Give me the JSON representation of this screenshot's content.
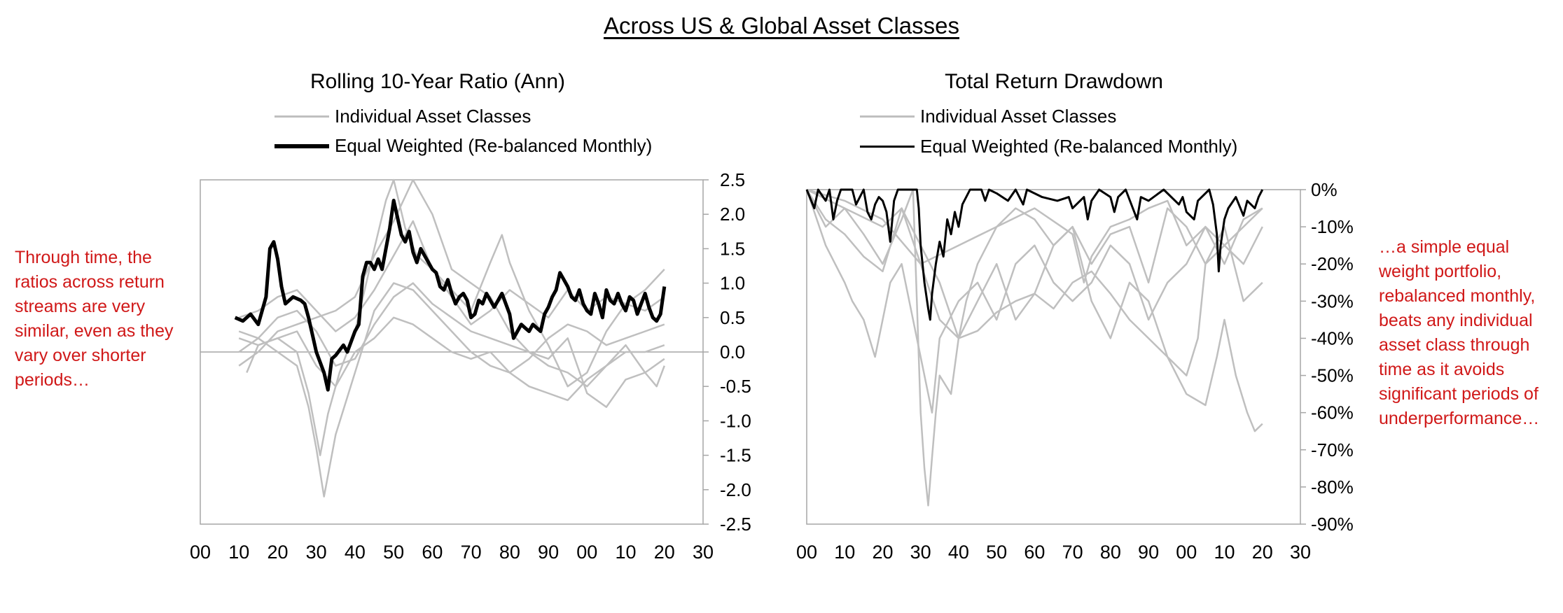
{
  "main_title": "Across US & Global Asset Classes",
  "left_note": "Through time, the ratios across return streams are very similar, even as they vary over shorter periods…",
  "right_note": "…a simple equal weight portfolio, rebalanced monthly, beats any individual asset class through time as it avoids significant periods of underperformance…",
  "colors": {
    "individual": "#bfbfbf",
    "equal_weighted": "#000000",
    "annotation": "#d01818"
  },
  "chart_data": [
    {
      "type": "line",
      "title": "Rolling 10-Year Ratio (Ann)",
      "legend_position": "top",
      "legend": [
        "Individual Asset Classes",
        "Equal Weighted (Re-balanced Monthly)"
      ],
      "x_tick_labels": [
        "00",
        "10",
        "20",
        "30",
        "40",
        "50",
        "60",
        "70",
        "80",
        "90",
        "00",
        "10",
        "20",
        "30"
      ],
      "xlim": [
        1900,
        2030
      ],
      "y_tick_labels": [
        "2.5",
        "2.0",
        "1.5",
        "1.0",
        "0.5",
        "0.0",
        "-0.5",
        "-1.0",
        "-1.5",
        "-2.0",
        "-2.5"
      ],
      "ylim": [
        -2.5,
        2.5
      ],
      "y_axis_side": "right",
      "grid": false,
      "series": [
        {
          "name": "Equal Weighted (Re-balanced Monthly)",
          "x": [
            1909,
            1911,
            1913,
            1915,
            1917,
            1918,
            1919,
            1920,
            1921,
            1922,
            1924,
            1926,
            1927,
            1928,
            1929,
            1930,
            1931,
            1932,
            1933,
            1934,
            1935,
            1937,
            1938,
            1940,
            1941,
            1942,
            1943,
            1944,
            1945,
            1946,
            1947,
            1948,
            1949,
            1950,
            1951,
            1952,
            1953,
            1954,
            1955,
            1956,
            1957,
            1958,
            1959,
            1960,
            1961,
            1962,
            1963,
            1964,
            1965,
            1966,
            1967,
            1968,
            1969,
            1970,
            1971,
            1972,
            1973,
            1974,
            1975,
            1976,
            1977,
            1978,
            1979,
            1980,
            1981,
            1982,
            1983,
            1984,
            1985,
            1986,
            1987,
            1988,
            1989,
            1990,
            1991,
            1992,
            1993,
            1994,
            1995,
            1996,
            1997,
            1998,
            1999,
            2000,
            2001,
            2002,
            2003,
            2004,
            2005,
            2006,
            2007,
            2008,
            2009,
            2010,
            2011,
            2012,
            2013,
            2014,
            2015,
            2016,
            2017,
            2018,
            2019,
            2020
          ],
          "y": [
            0.5,
            0.45,
            0.55,
            0.4,
            0.8,
            1.5,
            1.6,
            1.35,
            0.95,
            0.7,
            0.8,
            0.75,
            0.7,
            0.5,
            0.25,
            0.0,
            -0.15,
            -0.3,
            -0.55,
            -0.1,
            -0.05,
            0.1,
            0.0,
            0.3,
            0.4,
            1.1,
            1.3,
            1.3,
            1.2,
            1.35,
            1.2,
            1.5,
            1.8,
            2.2,
            1.95,
            1.7,
            1.6,
            1.75,
            1.45,
            1.3,
            1.5,
            1.4,
            1.3,
            1.2,
            1.15,
            0.95,
            0.9,
            1.05,
            0.85,
            0.7,
            0.8,
            0.85,
            0.75,
            0.5,
            0.55,
            0.75,
            0.7,
            0.85,
            0.75,
            0.65,
            0.75,
            0.85,
            0.7,
            0.55,
            0.2,
            0.3,
            0.4,
            0.35,
            0.3,
            0.4,
            0.35,
            0.3,
            0.55,
            0.65,
            0.8,
            0.9,
            1.15,
            1.05,
            0.95,
            0.8,
            0.75,
            0.9,
            0.7,
            0.6,
            0.55,
            0.85,
            0.7,
            0.5,
            0.9,
            0.75,
            0.7,
            0.85,
            0.7,
            0.6,
            0.8,
            0.75,
            0.55,
            0.7,
            0.85,
            0.65,
            0.5,
            0.45,
            0.55,
            0.95
          ]
        },
        {
          "name": "",
          "x": [
            1910,
            1915,
            1920,
            1925,
            1928,
            1931,
            1933,
            1936,
            1940,
            1945,
            1948,
            1950,
            1953,
            1956,
            1960,
            1965,
            1970,
            1975,
            1980,
            1985,
            1990,
            1995,
            2000,
            2005,
            2010,
            2015,
            2020
          ],
          "y": [
            0.2,
            0.1,
            0.2,
            0.0,
            -0.6,
            -1.5,
            -0.9,
            -0.3,
            0.3,
            1.5,
            2.2,
            2.5,
            1.8,
            1.4,
            1.2,
            0.8,
            0.4,
            0.6,
            0.9,
            0.7,
            0.5,
            0.9,
            0.6,
            0.8,
            0.7,
            0.6,
            0.8
          ]
        },
        {
          "name": "",
          "x": [
            1910,
            1915,
            1920,
            1925,
            1928,
            1930,
            1932,
            1935,
            1940,
            1945,
            1950,
            1955,
            1960,
            1965,
            1970,
            1975,
            1980,
            1985,
            1990,
            1995,
            2000,
            2005,
            2010,
            2015,
            2020
          ],
          "y": [
            0.3,
            0.2,
            0.0,
            -0.2,
            -0.8,
            -1.4,
            -2.1,
            -1.2,
            -0.3,
            0.6,
            1.0,
            0.9,
            0.6,
            0.3,
            0.0,
            -0.2,
            -0.3,
            -0.1,
            0.2,
            0.4,
            0.3,
            0.1,
            0.2,
            0.3,
            0.4
          ]
        },
        {
          "name": "",
          "x": [
            1910,
            1915,
            1920,
            1925,
            1930,
            1935,
            1940,
            1945,
            1950,
            1955,
            1960,
            1965,
            1970,
            1975,
            1980,
            1985,
            1990,
            1995,
            2000,
            2005,
            2010,
            2015,
            2020
          ],
          "y": [
            -0.2,
            0.0,
            0.3,
            0.4,
            0.5,
            0.6,
            0.8,
            1.4,
            1.9,
            2.5,
            2.0,
            1.2,
            1.0,
            0.8,
            0.3,
            0.0,
            -0.2,
            -0.3,
            -0.5,
            -0.2,
            0.0,
            0.0,
            0.1
          ]
        },
        {
          "name": "",
          "x": [
            1912,
            1915,
            1920,
            1925,
            1930,
            1935,
            1940,
            1945,
            1950,
            1955,
            1960,
            1965,
            1970,
            1975,
            1980,
            1985,
            1990,
            1995,
            2000,
            2005,
            2010,
            2015,
            2018,
            2020
          ],
          "y": [
            -0.3,
            0.1,
            0.2,
            0.3,
            -0.2,
            -0.5,
            0.0,
            0.2,
            0.5,
            0.4,
            0.2,
            0.0,
            -0.1,
            0.0,
            -0.3,
            -0.5,
            -0.6,
            -0.7,
            -0.4,
            -0.2,
            0.1,
            -0.3,
            -0.5,
            -0.2
          ]
        },
        {
          "name": "",
          "x": [
            1910,
            1915,
            1920,
            1925,
            1930,
            1935,
            1940,
            1945,
            1950,
            1955,
            1960,
            1965,
            1970,
            1975,
            1978,
            1980,
            1985,
            1990,
            1995,
            2000,
            2005,
            2010,
            2015,
            2020
          ],
          "y": [
            0.5,
            0.6,
            0.8,
            0.9,
            0.6,
            0.3,
            0.5,
            0.9,
            1.4,
            1.9,
            1.2,
            0.9,
            0.6,
            1.3,
            1.7,
            1.3,
            0.6,
            0.1,
            -0.5,
            -0.3,
            0.3,
            0.7,
            0.9,
            1.2
          ]
        },
        {
          "name": "",
          "x": [
            1910,
            1915,
            1920,
            1925,
            1930,
            1935,
            1940,
            1945,
            1950,
            1955,
            1960,
            1965,
            1970,
            1975,
            1980,
            1985,
            1990,
            1995,
            2000,
            2005,
            2010,
            2015,
            2020
          ],
          "y": [
            0.0,
            0.2,
            0.5,
            0.6,
            0.3,
            -0.2,
            -0.1,
            0.4,
            0.8,
            1.0,
            0.7,
            0.5,
            0.3,
            0.2,
            0.1,
            0.0,
            -0.1,
            0.2,
            -0.6,
            -0.8,
            -0.4,
            -0.3,
            -0.1
          ]
        }
      ]
    },
    {
      "type": "line",
      "title": "Total Return Drawdown",
      "legend_position": "top",
      "legend": [
        "Individual Asset Classes",
        "Equal Weighted (Re-balanced Monthly)"
      ],
      "x_tick_labels": [
        "00",
        "10",
        "20",
        "30",
        "40",
        "50",
        "60",
        "70",
        "80",
        "90",
        "00",
        "10",
        "20",
        "30"
      ],
      "xlim": [
        1900,
        2030
      ],
      "y_tick_labels": [
        "0%",
        "-10%",
        "-20%",
        "-30%",
        "-40%",
        "-50%",
        "-60%",
        "-70%",
        "-80%",
        "-90%"
      ],
      "ylim": [
        -90,
        0
      ],
      "y_axis_side": "right",
      "grid": false,
      "series": [
        {
          "name": "Equal Weighted (Re-balanced Monthly)",
          "x": [
            1900,
            1902,
            1903,
            1905,
            1906,
            1907,
            1908,
            1909,
            1912,
            1913,
            1915,
            1916,
            1917,
            1918,
            1919,
            1920,
            1921,
            1922,
            1923,
            1924,
            1926,
            1929,
            1929.5,
            1930,
            1931,
            1932,
            1932.5,
            1933,
            1934,
            1935,
            1936,
            1937,
            1938,
            1939,
            1940,
            1941,
            1942,
            1943,
            1946,
            1947,
            1948,
            1950,
            1953,
            1955,
            1957,
            1958,
            1962,
            1966,
            1969,
            1970,
            1973,
            1974,
            1975,
            1977,
            1980,
            1981,
            1982,
            1984,
            1987,
            1988,
            1990,
            1994,
            1998,
            1999,
            2000,
            2002,
            2003,
            2006,
            2007,
            2008,
            2008.5,
            2009,
            2010,
            2011,
            2013,
            2015,
            2016,
            2018,
            2019,
            2020
          ],
          "y": [
            0,
            -5,
            0,
            -3,
            0,
            -8,
            -3,
            0,
            0,
            -4,
            0,
            -6,
            -8,
            -4,
            -2,
            -3,
            -6,
            -14,
            -3,
            0,
            0,
            0,
            -5,
            -15,
            -25,
            -32,
            -35,
            -28,
            -20,
            -14,
            -18,
            -8,
            -12,
            -6,
            -10,
            -4,
            -2,
            0,
            0,
            -3,
            0,
            -1,
            -3,
            0,
            -4,
            0,
            -2,
            -3,
            -2,
            -5,
            -2,
            -8,
            -3,
            0,
            -2,
            -6,
            -2,
            0,
            -8,
            -2,
            -3,
            0,
            -4,
            -2,
            -6,
            -8,
            -3,
            0,
            -4,
            -12,
            -22,
            -15,
            -8,
            -5,
            -2,
            -7,
            -3,
            -5,
            -2,
            0
          ]
        },
        {
          "name": "",
          "x": [
            1900,
            1905,
            1910,
            1915,
            1920,
            1925,
            1928,
            1929,
            1930,
            1931,
            1932,
            1933,
            1934,
            1935,
            1938,
            1940,
            1942,
            1945,
            1950,
            1955,
            1960,
            1965,
            1970,
            1975,
            1980,
            1985,
            1990,
            1995,
            2000,
            2005,
            2010,
            2015,
            2020
          ],
          "y": [
            0,
            -10,
            -5,
            -12,
            -20,
            -8,
            0,
            -30,
            -60,
            -75,
            -85,
            -72,
            -60,
            -50,
            -55,
            -40,
            -30,
            -20,
            -10,
            -5,
            -8,
            -15,
            -10,
            -20,
            -12,
            -10,
            -25,
            -5,
            -10,
            -20,
            -15,
            -10,
            -5
          ]
        },
        {
          "name": "",
          "x": [
            1900,
            1905,
            1910,
            1912,
            1915,
            1918,
            1920,
            1922,
            1925,
            1930,
            1933,
            1935,
            1940,
            1945,
            1950,
            1955,
            1960,
            1965,
            1970,
            1975,
            1980,
            1985,
            1990,
            1995,
            2000,
            2005,
            2010,
            2015,
            2020
          ],
          "y": [
            0,
            -15,
            -25,
            -30,
            -35,
            -45,
            -35,
            -25,
            -20,
            -45,
            -60,
            -40,
            -30,
            -25,
            -35,
            -20,
            -15,
            -25,
            -30,
            -25,
            -15,
            -20,
            -35,
            -25,
            -20,
            -10,
            -15,
            -20,
            -10
          ]
        },
        {
          "name": "",
          "x": [
            1900,
            1910,
            1920,
            1925,
            1930,
            1935,
            1940,
            1945,
            1950,
            1955,
            1960,
            1965,
            1970,
            1975,
            1980,
            1985,
            1990,
            1995,
            2000,
            2005,
            2008,
            2010,
            2013,
            2016,
            2018,
            2020
          ],
          "y": [
            0,
            -5,
            -10,
            -5,
            -20,
            -35,
            -40,
            -38,
            -33,
            -30,
            -28,
            -32,
            -25,
            -22,
            -28,
            -35,
            -40,
            -45,
            -55,
            -58,
            -45,
            -35,
            -50,
            -60,
            -65,
            -63
          ]
        },
        {
          "name": "",
          "x": [
            1900,
            1905,
            1910,
            1915,
            1920,
            1925,
            1930,
            1935,
            1940,
            1945,
            1950,
            1955,
            1960,
            1965,
            1970,
            1975,
            1980,
            1985,
            1990,
            1995,
            2000,
            2003,
            2005,
            2010,
            2015,
            2020
          ],
          "y": [
            0,
            -8,
            -12,
            -18,
            -22,
            -5,
            -15,
            -25,
            -40,
            -30,
            -20,
            -35,
            -28,
            -15,
            -10,
            -30,
            -40,
            -25,
            -30,
            -45,
            -50,
            -40,
            -20,
            -10,
            -30,
            -25
          ]
        },
        {
          "name": "",
          "x": [
            1900,
            1910,
            1920,
            1930,
            1940,
            1950,
            1960,
            1970,
            1973,
            1975,
            1980,
            1985,
            1990,
            1995,
            2000,
            2005,
            2010,
            2015,
            2020
          ],
          "y": [
            0,
            -3,
            -8,
            -20,
            -15,
            -10,
            -5,
            -12,
            -25,
            -18,
            -10,
            -8,
            -5,
            -3,
            -15,
            -10,
            -20,
            -8,
            -5
          ]
        }
      ]
    }
  ]
}
